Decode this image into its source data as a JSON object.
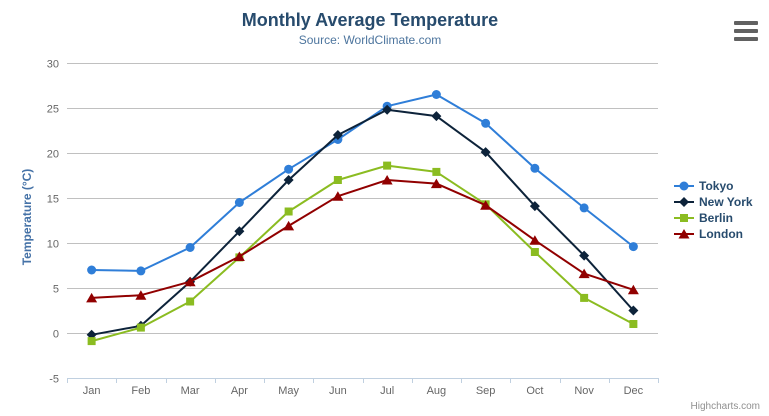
{
  "chart_data": {
    "type": "line",
    "title": "Monthly Average Temperature",
    "subtitle": "Source: WorldClimate.com",
    "xlabel": "",
    "ylabel": "Temperature (°C)",
    "categories": [
      "Jan",
      "Feb",
      "Mar",
      "Apr",
      "May",
      "Jun",
      "Jul",
      "Aug",
      "Sep",
      "Oct",
      "Nov",
      "Dec"
    ],
    "ylim": [
      -5,
      30
    ],
    "y_ticks": [
      -5,
      0,
      5,
      10,
      15,
      20,
      25,
      30
    ],
    "grid": true,
    "legend_position": "right",
    "series": [
      {
        "name": "Tokyo",
        "color": "#2f7ed8",
        "marker": "circle",
        "values": [
          7.0,
          6.9,
          9.5,
          14.5,
          18.2,
          21.5,
          25.2,
          26.5,
          23.3,
          18.3,
          13.9,
          9.6
        ]
      },
      {
        "name": "New York",
        "color": "#0d233a",
        "marker": "diamond",
        "values": [
          -0.2,
          0.8,
          5.7,
          11.3,
          17.0,
          22.0,
          24.8,
          24.1,
          20.1,
          14.1,
          8.6,
          2.5
        ]
      },
      {
        "name": "Berlin",
        "color": "#8bbc21",
        "marker": "square",
        "values": [
          -0.9,
          0.6,
          3.5,
          8.4,
          13.5,
          17.0,
          18.6,
          17.9,
          14.3,
          9.0,
          3.9,
          1.0
        ]
      },
      {
        "name": "London",
        "color": "#910000",
        "marker": "triangle",
        "values": [
          3.9,
          4.2,
          5.7,
          8.5,
          11.9,
          15.2,
          17.0,
          16.6,
          14.2,
          10.3,
          6.6,
          4.8
        ]
      }
    ],
    "colors": {
      "grid_line": "#C0C0C0",
      "axis_line": "#C0D0E0",
      "tick_label": "#666666",
      "y_axis_title": "#4572A7",
      "title": "#274b6d",
      "subtitle": "#4d759e",
      "legend_text": "#274b6d"
    }
  },
  "context_menu": {
    "icon": "hamburger-icon"
  },
  "credits": {
    "label": "Highcharts.com"
  }
}
